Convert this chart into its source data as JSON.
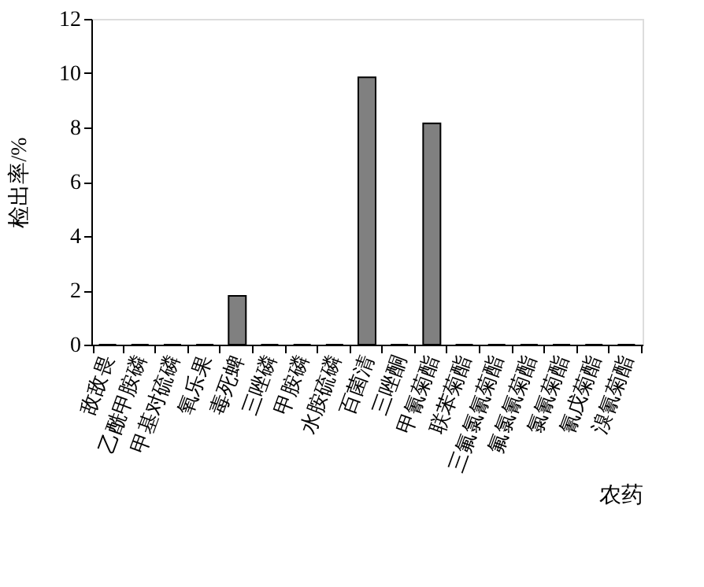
{
  "chart_data": {
    "type": "bar",
    "ylabel": "检出率/%",
    "xlabel": "农药",
    "categories": [
      "敌敌畏",
      "乙酰甲胺磷",
      "甲基对硫磷",
      "氧乐果",
      "毒死蜱",
      "三唑磷",
      "甲胺磷",
      "水胺硫磷",
      "百菌清",
      "三唑酮",
      "甲氰菊酯",
      "联苯菊酯",
      "三氟氯氰菊酯",
      "氟氯氰菊酯",
      "氯氰菊酯",
      "氰戊菊酯",
      "溴氰菊酯"
    ],
    "values": [
      0,
      0,
      0,
      0,
      1.8,
      0,
      0,
      0,
      9.85,
      0,
      8.15,
      0,
      0,
      0,
      0,
      0,
      0
    ],
    "color": "#808080",
    "ylim": [
      0,
      12
    ],
    "yticks": [
      0,
      2,
      4,
      6,
      8,
      10,
      12
    ],
    "grid": false
  }
}
